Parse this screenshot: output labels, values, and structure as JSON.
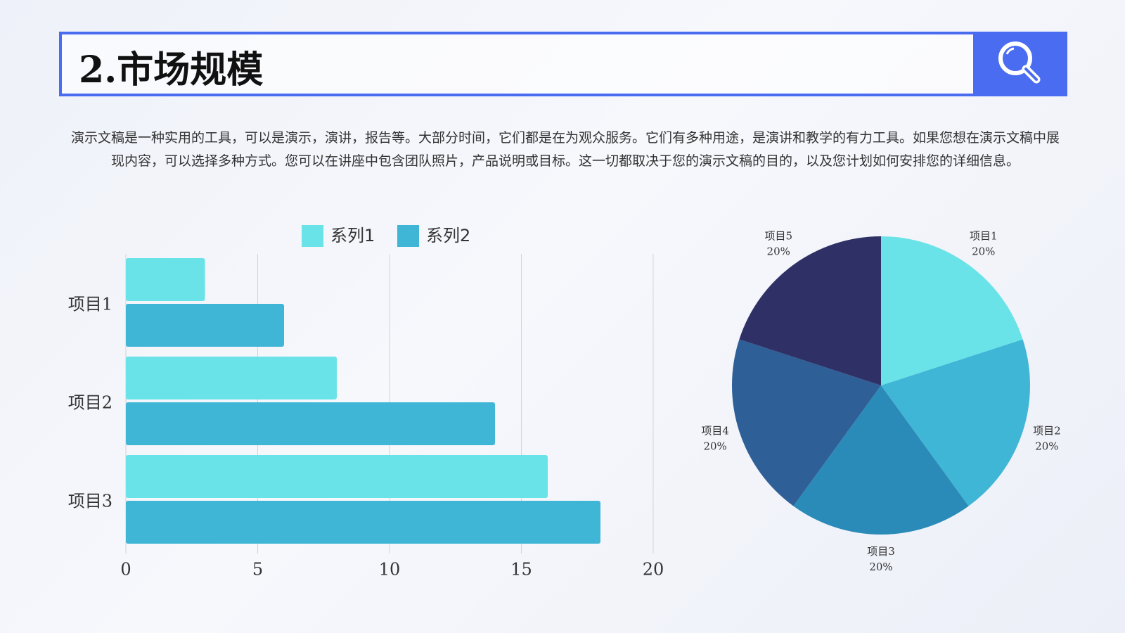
{
  "header": {
    "title": "2.市场规模"
  },
  "paragraph": "演示文稿是一种实用的工具，可以是演示，演讲，报告等。大部分时间，它们都是在为观众服务。它们有多种用途，是演讲和教学的有力工具。如果您想在演示文稿中展现内容，可以选择多种方式。您可以在讲座中包含团队照片，产品说明或目标。这一切都取决于您的演示文稿的目的，以及您计划如何安排您的详细信息。",
  "chart_data": [
    {
      "type": "hbar",
      "categories": [
        "项目1",
        "项目2",
        "项目3"
      ],
      "series": [
        {
          "name": "系列1",
          "color": "#6ae3e8",
          "values": [
            3,
            8,
            16
          ]
        },
        {
          "name": "系列2",
          "color": "#40b6d6",
          "values": [
            6,
            14,
            18
          ]
        }
      ],
      "xlim": [
        0,
        20
      ],
      "xticks": [
        0,
        5,
        10,
        15,
        20
      ],
      "grid": true,
      "legend": "top"
    },
    {
      "type": "pie",
      "categories": [
        "项目1",
        "项目2",
        "项目3",
        "项目4",
        "项目5"
      ],
      "values": [
        20,
        20,
        20,
        20,
        20
      ],
      "value_labels": [
        "20%",
        "20%",
        "20%",
        "20%",
        "20%"
      ],
      "colors": [
        "#6ae3e8",
        "#40b6d6",
        "#2b8bb8",
        "#2e5f97",
        "#2e3066"
      ]
    }
  ]
}
